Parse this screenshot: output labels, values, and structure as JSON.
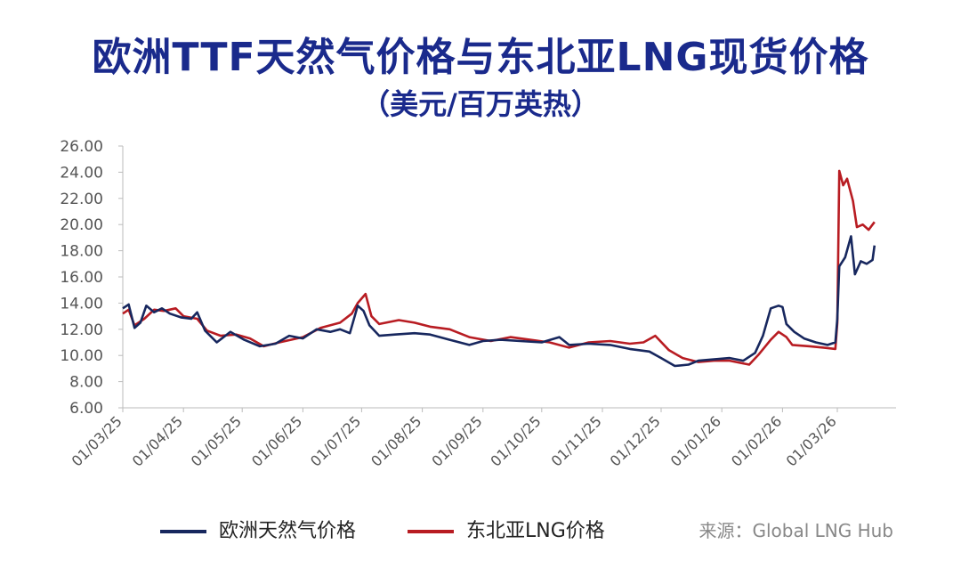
{
  "chart_data": {
    "type": "line",
    "title": "欧洲TTF天然气价格与东北亚LNG现货价格",
    "subtitle": "（美元/百万英热）",
    "ylim": [
      6,
      26
    ],
    "yticks": [
      "26.00",
      "24.00",
      "22.00",
      "20.00",
      "18.00",
      "16.00",
      "14.00",
      "12.00",
      "10.00",
      "8.00",
      "6.00"
    ],
    "xticks": [
      "01/03/25",
      "01/04/25",
      "01/05/25",
      "01/06/25",
      "01/07/25",
      "01/08/25",
      "01/09/25",
      "01/10/25",
      "01/11/25",
      "01/12/25",
      "01/01/26",
      "01/02/26",
      "01/03/26"
    ],
    "x_range": [
      "2025-03-01",
      "2026-03-31"
    ],
    "grid": false,
    "legend_position": "bottom",
    "series": [
      {
        "name": "欧洲天然气价格",
        "color": "#17275e",
        "points": [
          [
            "2025-03-01",
            13.6
          ],
          [
            "2025-03-04",
            13.9
          ],
          [
            "2025-03-07",
            12.1
          ],
          [
            "2025-03-10",
            12.5
          ],
          [
            "2025-03-13",
            13.8
          ],
          [
            "2025-03-17",
            13.3
          ],
          [
            "2025-03-21",
            13.6
          ],
          [
            "2025-03-25",
            13.2
          ],
          [
            "2025-03-31",
            12.9
          ],
          [
            "2025-04-05",
            12.8
          ],
          [
            "2025-04-08",
            13.3
          ],
          [
            "2025-04-12",
            11.9
          ],
          [
            "2025-04-18",
            11.0
          ],
          [
            "2025-04-25",
            11.8
          ],
          [
            "2025-05-02",
            11.2
          ],
          [
            "2025-05-10",
            10.7
          ],
          [
            "2025-05-18",
            10.9
          ],
          [
            "2025-05-25",
            11.5
          ],
          [
            "2025-06-01",
            11.3
          ],
          [
            "2025-06-08",
            12.0
          ],
          [
            "2025-06-15",
            11.8
          ],
          [
            "2025-06-20",
            12.0
          ],
          [
            "2025-06-25",
            11.7
          ],
          [
            "2025-06-29",
            13.8
          ],
          [
            "2025-07-02",
            13.4
          ],
          [
            "2025-07-05",
            12.3
          ],
          [
            "2025-07-10",
            11.5
          ],
          [
            "2025-07-18",
            11.6
          ],
          [
            "2025-07-28",
            11.7
          ],
          [
            "2025-08-05",
            11.6
          ],
          [
            "2025-08-15",
            11.2
          ],
          [
            "2025-08-25",
            10.8
          ],
          [
            "2025-09-01",
            11.1
          ],
          [
            "2025-09-10",
            11.2
          ],
          [
            "2025-09-20",
            11.1
          ],
          [
            "2025-10-01",
            11.0
          ],
          [
            "2025-10-10",
            11.4
          ],
          [
            "2025-10-15",
            10.8
          ],
          [
            "2025-10-25",
            10.9
          ],
          [
            "2025-11-05",
            10.8
          ],
          [
            "2025-11-15",
            10.5
          ],
          [
            "2025-11-25",
            10.3
          ],
          [
            "2025-12-01",
            9.8
          ],
          [
            "2025-12-08",
            9.2
          ],
          [
            "2025-12-15",
            9.3
          ],
          [
            "2025-12-20",
            9.6
          ],
          [
            "2025-12-28",
            9.7
          ],
          [
            "2026-01-05",
            9.8
          ],
          [
            "2026-01-12",
            9.6
          ],
          [
            "2026-01-18",
            10.2
          ],
          [
            "2026-01-22",
            11.5
          ],
          [
            "2026-01-26",
            13.6
          ],
          [
            "2026-01-30",
            13.8
          ],
          [
            "2026-02-01",
            13.7
          ],
          [
            "2026-02-03",
            12.4
          ],
          [
            "2026-02-07",
            11.8
          ],
          [
            "2026-02-12",
            11.3
          ],
          [
            "2026-02-18",
            11.0
          ],
          [
            "2026-02-24",
            10.8
          ],
          [
            "2026-02-28",
            11.0
          ],
          [
            "2026-03-01",
            12.8
          ],
          [
            "2026-03-02",
            16.8
          ],
          [
            "2026-03-05",
            17.5
          ],
          [
            "2026-03-08",
            19.1
          ],
          [
            "2026-03-10",
            16.2
          ],
          [
            "2026-03-13",
            17.2
          ],
          [
            "2026-03-16",
            17.0
          ],
          [
            "2026-03-19",
            17.3
          ],
          [
            "2026-03-20",
            18.4
          ]
        ]
      },
      {
        "name": "东北亚LNG价格",
        "color": "#b81c22",
        "points": [
          [
            "2025-03-01",
            13.2
          ],
          [
            "2025-03-04",
            13.5
          ],
          [
            "2025-03-07",
            12.3
          ],
          [
            "2025-03-12",
            12.8
          ],
          [
            "2025-03-17",
            13.5
          ],
          [
            "2025-03-22",
            13.4
          ],
          [
            "2025-03-28",
            13.6
          ],
          [
            "2025-04-01",
            13.0
          ],
          [
            "2025-04-08",
            12.8
          ],
          [
            "2025-04-13",
            11.9
          ],
          [
            "2025-04-20",
            11.5
          ],
          [
            "2025-04-28",
            11.6
          ],
          [
            "2025-05-05",
            11.3
          ],
          [
            "2025-05-12",
            10.7
          ],
          [
            "2025-05-20",
            11.0
          ],
          [
            "2025-06-01",
            11.4
          ],
          [
            "2025-06-10",
            12.1
          ],
          [
            "2025-06-20",
            12.5
          ],
          [
            "2025-06-26",
            13.2
          ],
          [
            "2025-06-29",
            14.0
          ],
          [
            "2025-07-03",
            14.7
          ],
          [
            "2025-07-06",
            13.0
          ],
          [
            "2025-07-10",
            12.4
          ],
          [
            "2025-07-20",
            12.7
          ],
          [
            "2025-07-28",
            12.5
          ],
          [
            "2025-08-05",
            12.2
          ],
          [
            "2025-08-15",
            12.0
          ],
          [
            "2025-08-25",
            11.4
          ],
          [
            "2025-09-05",
            11.1
          ],
          [
            "2025-09-15",
            11.4
          ],
          [
            "2025-09-25",
            11.2
          ],
          [
            "2025-10-05",
            11.0
          ],
          [
            "2025-10-15",
            10.6
          ],
          [
            "2025-10-25",
            11.0
          ],
          [
            "2025-11-05",
            11.1
          ],
          [
            "2025-11-15",
            10.9
          ],
          [
            "2025-11-22",
            11.0
          ],
          [
            "2025-11-28",
            11.5
          ],
          [
            "2025-12-05",
            10.4
          ],
          [
            "2025-12-12",
            9.8
          ],
          [
            "2025-12-20",
            9.5
          ],
          [
            "2025-12-28",
            9.6
          ],
          [
            "2026-01-05",
            9.6
          ],
          [
            "2026-01-15",
            9.3
          ],
          [
            "2026-01-20",
            10.1
          ],
          [
            "2026-01-26",
            11.2
          ],
          [
            "2026-01-30",
            11.8
          ],
          [
            "2026-02-03",
            11.4
          ],
          [
            "2026-02-06",
            10.8
          ],
          [
            "2026-02-15",
            10.7
          ],
          [
            "2026-02-22",
            10.6
          ],
          [
            "2026-02-28",
            10.5
          ],
          [
            "2026-03-01",
            12.5
          ],
          [
            "2026-03-02",
            24.1
          ],
          [
            "2026-03-04",
            23.0
          ],
          [
            "2026-03-06",
            23.5
          ],
          [
            "2026-03-09",
            21.8
          ],
          [
            "2026-03-11",
            19.8
          ],
          [
            "2026-03-14",
            20.0
          ],
          [
            "2026-03-17",
            19.6
          ],
          [
            "2026-03-20",
            20.2
          ]
        ]
      }
    ]
  },
  "source": "来源：Global LNG Hub"
}
